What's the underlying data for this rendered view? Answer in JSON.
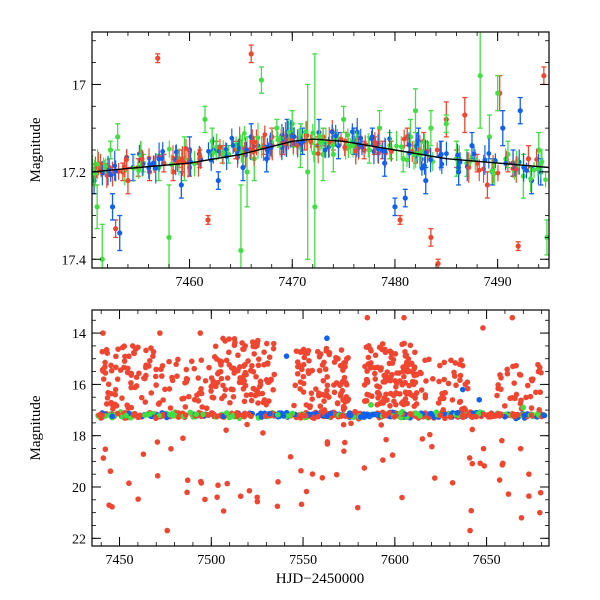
{
  "figure": {
    "xlabel": "HJD−2450000"
  },
  "colors": {
    "red": "#f04630",
    "green": "#40e040",
    "blue": "#1060f0",
    "model": "#000000",
    "frame": "#000000"
  },
  "chart_data": [
    {
      "type": "scatter",
      "panel": "top",
      "ylabel": "Magnitude",
      "xlim": [
        7450.5,
        7495
      ],
      "ylim": [
        17.42,
        16.88
      ],
      "y_inverted": true,
      "xticks": [
        7460,
        7470,
        7480,
        7490
      ],
      "xtick_labels": [
        "7460",
        "7470",
        "7480",
        "7490"
      ],
      "yticks": [
        17.0,
        17.2,
        17.4
      ],
      "ytick_labels": [
        "17",
        "17.2",
        "17.4"
      ],
      "grid": false,
      "error_bars": true,
      "model_curve": {
        "x": [
          7450.5,
          7455,
          7460,
          7465,
          7470,
          7472,
          7475,
          7480,
          7485,
          7490,
          7495
        ],
        "y": [
          17.2,
          17.19,
          17.18,
          17.16,
          17.13,
          17.125,
          17.13,
          17.15,
          17.17,
          17.18,
          17.19
        ]
      },
      "series": [
        {
          "color": "red",
          "x": [
            7450.8,
            7452.2,
            7452.8,
            7453.5,
            7454.0,
            7455.0,
            7456.1,
            7456.9,
            7457.5,
            7458.4,
            7459.0,
            7460.0,
            7461.0,
            7461.8,
            7462.6,
            7463.2,
            7464.5,
            7466.0,
            7467.2,
            7468.0,
            7469.0,
            7470.0,
            7471.2,
            7472.5,
            7473.0,
            7474.0,
            7475.2,
            7476.0,
            7477.0,
            7478.0,
            7478.8,
            7479.6,
            7480.5,
            7481.2,
            7482.0,
            7482.8,
            7483.5,
            7484.2,
            7485.0,
            7486.0,
            7486.8,
            7488.0,
            7489.0,
            7490.2,
            7491.0,
            7492.0,
            7493.0,
            7494.5
          ],
          "y": [
            17.21,
            17.19,
            17.33,
            17.2,
            17.22,
            17.19,
            17.2,
            16.94,
            17.18,
            17.2,
            17.17,
            17.19,
            17.17,
            17.31,
            17.15,
            17.16,
            17.15,
            16.93,
            17.14,
            17.12,
            17.14,
            17.12,
            17.13,
            17.14,
            17.12,
            17.13,
            17.13,
            17.14,
            17.15,
            17.14,
            17.15,
            17.15,
            17.31,
            17.12,
            17.16,
            17.13,
            17.35,
            17.41,
            17.08,
            17.17,
            17.07,
            17.18,
            17.23,
            17.02,
            17.18,
            17.37,
            17.17,
            16.98
          ],
          "err": [
            0.02,
            0.02,
            0.02,
            0.02,
            0.03,
            0.02,
            0.02,
            0.01,
            0.02,
            0.02,
            0.02,
            0.02,
            0.02,
            0.01,
            0.02,
            0.02,
            0.02,
            0.02,
            0.02,
            0.02,
            0.02,
            0.02,
            0.02,
            0.02,
            0.02,
            0.02,
            0.02,
            0.02,
            0.02,
            0.02,
            0.02,
            0.02,
            0.01,
            0.02,
            0.02,
            0.02,
            0.02,
            0.01,
            0.04,
            0.02,
            0.04,
            0.02,
            0.03,
            0.04,
            0.02,
            0.01,
            0.03,
            0.02
          ]
        },
        {
          "color": "green",
          "x": [
            7451.0,
            7451.5,
            7452.3,
            7453.0,
            7455.5,
            7457.0,
            7458.0,
            7459.5,
            7461.5,
            7462.2,
            7463.8,
            7465.0,
            7465.6,
            7466.3,
            7467.0,
            7468.5,
            7470.0,
            7470.8,
            7471.5,
            7472.2,
            7473.0,
            7474.0,
            7475.0,
            7476.3,
            7477.5,
            7478.5,
            7479.5,
            7480.8,
            7481.5,
            7482.0,
            7483.5,
            7485.0,
            7486.0,
            7487.0,
            7488.3,
            7489.2,
            7490.0,
            7491.0,
            7492.5,
            7494.0,
            7494.8
          ],
          "y": [
            17.28,
            17.4,
            17.15,
            17.12,
            17.18,
            17.19,
            17.35,
            17.17,
            17.08,
            17.13,
            17.16,
            17.38,
            17.2,
            17.17,
            16.99,
            17.1,
            17.09,
            17.14,
            17.2,
            17.28,
            17.16,
            17.16,
            17.08,
            17.14,
            17.15,
            17.1,
            17.14,
            17.17,
            17.12,
            17.06,
            17.1,
            17.09,
            17.17,
            17.18,
            16.98,
            17.12,
            17.02,
            17.16,
            17.21,
            17.15,
            17.35
          ],
          "err": [
            0.05,
            0.08,
            0.02,
            0.03,
            0.02,
            0.03,
            0.12,
            0.05,
            0.03,
            0.03,
            0.02,
            0.15,
            0.08,
            0.05,
            0.03,
            0.02,
            0.03,
            0.05,
            0.2,
            0.35,
            0.06,
            0.04,
            0.03,
            0.02,
            0.03,
            0.04,
            0.03,
            0.03,
            0.04,
            0.05,
            0.04,
            0.02,
            0.04,
            0.03,
            0.12,
            0.05,
            0.04,
            0.03,
            0.05,
            0.04,
            0.04
          ]
        },
        {
          "color": "blue",
          "x": [
            7450.7,
            7452.5,
            7453.2,
            7454.5,
            7459.2,
            7460.0,
            7462.8,
            7465.2,
            7466.0,
            7467.5,
            7469.5,
            7471.0,
            7472.6,
            7474.5,
            7476.0,
            7477.8,
            7479.0,
            7480.0,
            7481.0,
            7482.3,
            7483.0,
            7484.5,
            7486.2,
            7487.5,
            7489.5,
            7490.5,
            7491.5,
            7492.2,
            7493.3,
            7494.2
          ],
          "y": [
            17.22,
            17.28,
            17.34,
            17.19,
            17.23,
            17.15,
            17.22,
            17.19,
            17.12,
            17.17,
            17.11,
            17.13,
            17.11,
            17.14,
            17.13,
            17.12,
            17.18,
            17.28,
            17.26,
            17.13,
            17.22,
            17.16,
            17.2,
            17.14,
            17.2,
            17.1,
            17.18,
            17.06,
            17.22,
            17.2
          ],
          "err": [
            0.03,
            0.03,
            0.04,
            0.03,
            0.03,
            0.03,
            0.02,
            0.03,
            0.03,
            0.03,
            0.03,
            0.03,
            0.03,
            0.03,
            0.03,
            0.02,
            0.03,
            0.02,
            0.02,
            0.03,
            0.03,
            0.03,
            0.03,
            0.03,
            0.03,
            0.04,
            0.03,
            0.03,
            0.03,
            0.03
          ]
        }
      ]
    },
    {
      "type": "scatter",
      "panel": "bottom",
      "ylabel": "Magnitude",
      "xlabel": "HJD−2450000",
      "xlim": [
        7435,
        7684
      ],
      "ylim": [
        22.3,
        13.1
      ],
      "y_inverted": true,
      "xticks": [
        7450,
        7500,
        7550,
        7600,
        7650
      ],
      "xtick_labels": [
        "7450",
        "7500",
        "7550",
        "7600",
        "7650"
      ],
      "yticks": [
        14,
        16,
        18,
        20,
        22
      ],
      "ytick_labels": [
        "14",
        "16",
        "18",
        "20",
        "22"
      ],
      "grid": false,
      "baseline": {
        "x_start": 7438,
        "x_end": 7682,
        "magnitude": 17.2,
        "scatter": 0.15
      },
      "clouds": [
        {
          "color": "red",
          "x_range": [
            7440,
            7470
          ],
          "y_range": [
            14.5,
            17.0
          ],
          "count": 70
        },
        {
          "color": "red",
          "x_range": [
            7470,
            7500
          ],
          "y_range": [
            15.0,
            17.0
          ],
          "count": 40
        },
        {
          "color": "red",
          "x_range": [
            7500,
            7535
          ],
          "y_range": [
            14.2,
            16.8
          ],
          "count": 110
        },
        {
          "color": "red",
          "x_range": [
            7545,
            7575
          ],
          "y_range": [
            14.6,
            17.0
          ],
          "count": 90
        },
        {
          "color": "red",
          "x_range": [
            7583,
            7612
          ],
          "y_range": [
            14.4,
            16.9
          ],
          "count": 130
        },
        {
          "color": "red",
          "x_range": [
            7612,
            7640
          ],
          "y_range": [
            15.0,
            17.0
          ],
          "count": 40
        },
        {
          "color": "red",
          "x_range": [
            7655,
            7680
          ],
          "y_range": [
            15.2,
            17.0
          ],
          "count": 35
        },
        {
          "color": "red",
          "x_range": [
            7440,
            7680
          ],
          "y_range": [
            17.5,
            21.0
          ],
          "count": 70
        }
      ],
      "points": [
        {
          "color": "red",
          "x": 7441,
          "y": 14.0
        },
        {
          "color": "red",
          "x": 7472,
          "y": 14.0
        },
        {
          "color": "red",
          "x": 7476,
          "y": 21.7
        },
        {
          "color": "red",
          "x": 7494,
          "y": 14.0
        },
        {
          "color": "red",
          "x": 7525,
          "y": 20.4
        },
        {
          "color": "red",
          "x": 7585,
          "y": 13.4
        },
        {
          "color": "red",
          "x": 7605,
          "y": 13.4
        },
        {
          "color": "red",
          "x": 7641,
          "y": 21.7
        },
        {
          "color": "red",
          "x": 7648,
          "y": 13.8
        },
        {
          "color": "red",
          "x": 7664,
          "y": 13.4
        },
        {
          "color": "red",
          "x": 7669,
          "y": 21.2
        },
        {
          "color": "red",
          "x": 7679,
          "y": 21.0
        },
        {
          "color": "blue",
          "x": 7563,
          "y": 14.2
        },
        {
          "color": "blue",
          "x": 7637,
          "y": 16.2
        },
        {
          "color": "blue",
          "x": 7646,
          "y": 16.6
        },
        {
          "color": "blue",
          "x": 7541,
          "y": 14.9
        },
        {
          "color": "green",
          "x": 7670,
          "y": 16.9
        },
        {
          "color": "green",
          "x": 7587,
          "y": 16.8
        }
      ]
    }
  ]
}
